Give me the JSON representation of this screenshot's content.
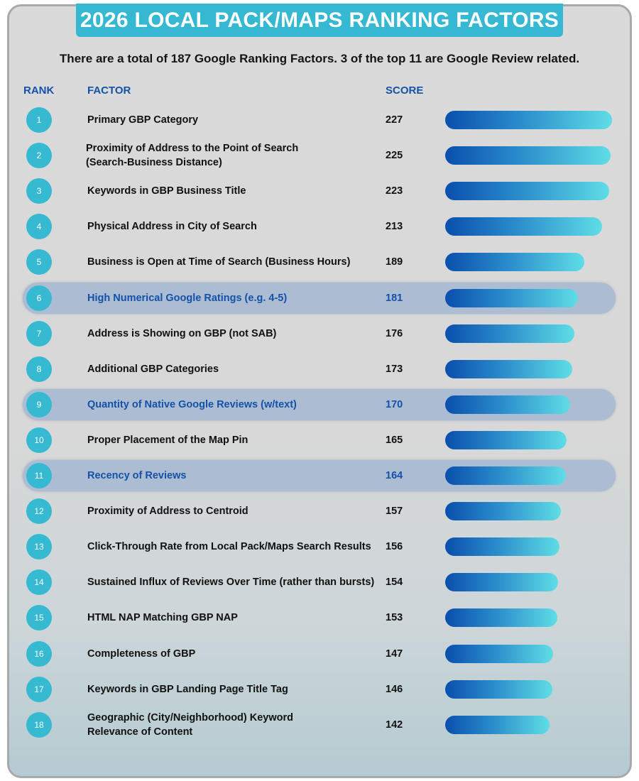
{
  "title": "2026 LOCAL PACK/MAPS RANKING FACTORS",
  "subtitle": "There are a total of 187 Google Ranking Factors. 3 of the top 11 are Google Review related.",
  "headers": {
    "rank": "RANK",
    "factor": "FACTOR",
    "score": "SCORE"
  },
  "colors": {
    "banner": "#35b8d1",
    "highlight_row": "#abbcd3",
    "highlight_text": "#1452a8",
    "bar_start": "#0a4fad",
    "bar_end": "#5fdde6"
  },
  "chart_data": {
    "type": "bar",
    "orientation": "horizontal",
    "title": "2026 LOCAL PACK/MAPS RANKING FACTORS",
    "xlabel": "SCORE",
    "ylabel": "FACTOR",
    "xlim": [
      0,
      227
    ],
    "grid": false,
    "rows": [
      {
        "rank": "1",
        "factor": "Primary GBP Category",
        "score": 227,
        "highlight": false
      },
      {
        "rank": "2",
        "factor": "Proximity of Address to the Point of Search\n(Search-Business Distance)",
        "score": 225,
        "highlight": false
      },
      {
        "rank": "3",
        "factor": "Keywords in GBP Business Title",
        "score": 223,
        "highlight": false
      },
      {
        "rank": "4",
        "factor": "Physical Address in City of Search",
        "score": 213,
        "highlight": false
      },
      {
        "rank": "5",
        "factor": "Business is Open at Time of Search (Business Hours)",
        "score": 189,
        "highlight": false
      },
      {
        "rank": "6",
        "factor": "High Numerical Google Ratings (e.g. 4-5)",
        "score": 181,
        "highlight": true
      },
      {
        "rank": "7",
        "factor": "Address is Showing on GBP (not SAB)",
        "score": 176,
        "highlight": false
      },
      {
        "rank": "8",
        "factor": "Additional GBP Categories",
        "score": 173,
        "highlight": false
      },
      {
        "rank": "9",
        "factor": "Quantity of Native Google Reviews (w/text)",
        "score": 170,
        "highlight": true
      },
      {
        "rank": "10",
        "factor": "Proper Placement of the Map Pin",
        "score": 165,
        "highlight": false
      },
      {
        "rank": "11",
        "factor": "Recency of Reviews",
        "score": 164,
        "highlight": true
      },
      {
        "rank": "12",
        "factor": "Proximity of Address to Centroid",
        "score": 157,
        "highlight": false
      },
      {
        "rank": "13",
        "factor": "Click-Through Rate from Local Pack/Maps Search Results",
        "score": 156,
        "highlight": false
      },
      {
        "rank": "14",
        "factor": "Sustained Influx of Reviews Over Time (rather than bursts)",
        "score": 154,
        "highlight": false
      },
      {
        "rank": "15",
        "factor": "HTML NAP Matching GBP NAP",
        "score": 153,
        "highlight": false
      },
      {
        "rank": "16",
        "factor": "Completeness of GBP",
        "score": 147,
        "highlight": false
      },
      {
        "rank": "17",
        "factor": "Keywords in GBP Landing Page Title Tag",
        "score": 146,
        "highlight": false
      },
      {
        "rank": "18",
        "factor": "Geographic (City/Neighborhood) Keyword\nRelevance of Content",
        "score": 142,
        "highlight": false
      }
    ]
  }
}
